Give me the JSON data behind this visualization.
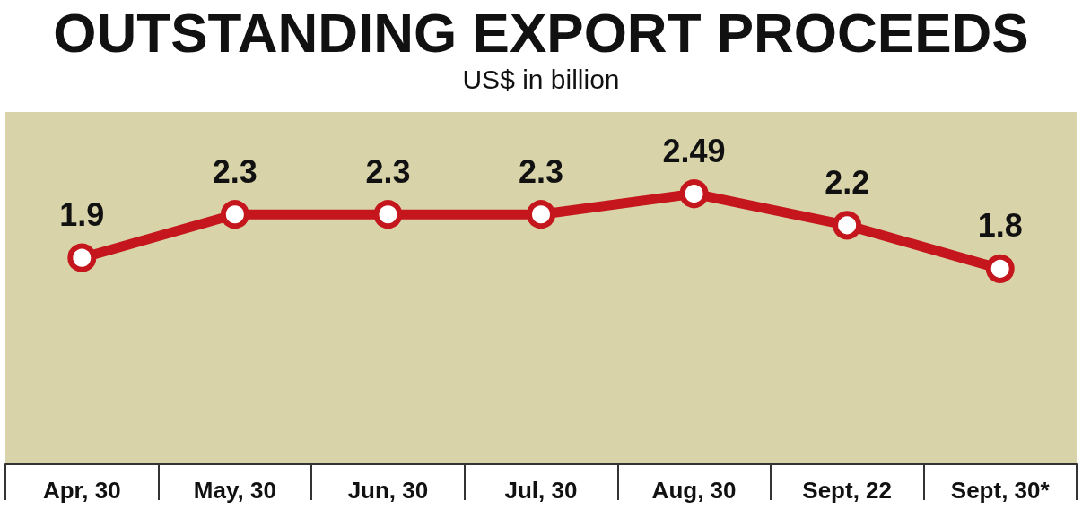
{
  "chart_data": {
    "type": "line",
    "title": "OUTSTANDING EXPORT PROCEEDS",
    "subtitle": "US$ in billion",
    "categories": [
      "Apr, 30",
      "May, 30",
      "Jun, 30",
      "Jul, 30",
      "Aug, 30",
      "Sept, 22",
      "Sept, 30*"
    ],
    "values": [
      1.9,
      2.3,
      2.3,
      2.3,
      2.49,
      2.2,
      1.8
    ],
    "color": "#c4161c",
    "data_labels": true,
    "marker": "circle"
  }
}
